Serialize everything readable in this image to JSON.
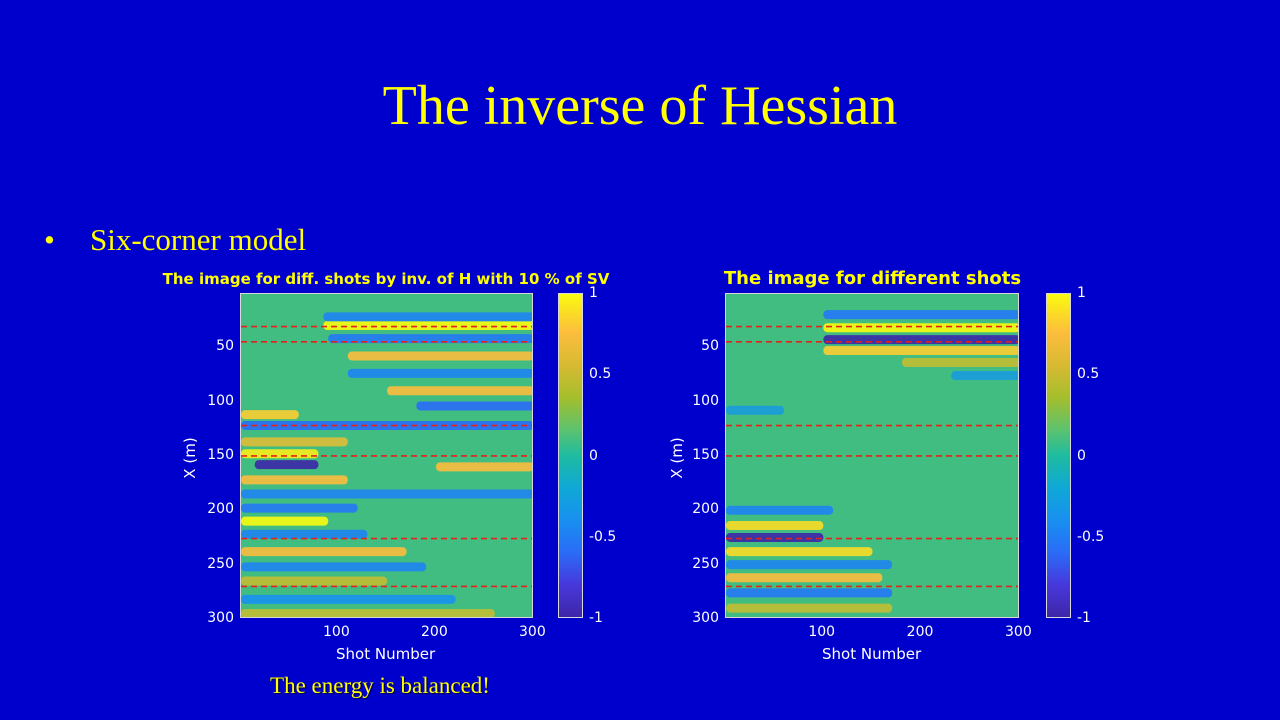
{
  "slide": {
    "title": "The inverse of Hessian",
    "bullet": "Six-corner model",
    "caption": "The energy is balanced!"
  },
  "chart_data": [
    {
      "type": "heatmap",
      "title": "The image for diff. shots by inv. of H with 10 % of SV",
      "xlabel": "Shot Number",
      "ylabel": "X (m)",
      "xlim": [
        1,
        300
      ],
      "ylim": [
        300,
        1
      ],
      "x_ticks": [
        "100",
        "200",
        "300"
      ],
      "y_ticks": [
        "50",
        "100",
        "150",
        "200",
        "250",
        "300"
      ],
      "colorbar": {
        "range": [
          -1,
          1
        ],
        "ticks": [
          "1",
          "0.5",
          "0",
          "-0.5",
          "-1"
        ]
      },
      "dashed_lines_y": [
        31,
        45,
        122,
        150,
        226,
        270
      ],
      "bands": [
        {
          "y": 30,
          "x0": 85,
          "x1": 300,
          "v": 1.0
        },
        {
          "y": 22,
          "x0": 85,
          "x1": 300,
          "v": -0.5
        },
        {
          "y": 42,
          "x0": 90,
          "x1": 300,
          "v": -0.6
        },
        {
          "y": 58,
          "x0": 110,
          "x1": 300,
          "v": 0.6
        },
        {
          "y": 74,
          "x0": 110,
          "x1": 300,
          "v": -0.5
        },
        {
          "y": 90,
          "x0": 150,
          "x1": 300,
          "v": 0.6
        },
        {
          "y": 104,
          "x0": 180,
          "x1": 300,
          "v": -0.7
        },
        {
          "y": 112,
          "x0": 1,
          "x1": 60,
          "v": 0.7
        },
        {
          "y": 122,
          "x0": 1,
          "x1": 300,
          "v": -0.7
        },
        {
          "y": 137,
          "x0": 1,
          "x1": 110,
          "v": 0.5
        },
        {
          "y": 148,
          "x0": 1,
          "x1": 80,
          "v": 0.9
        },
        {
          "y": 158,
          "x0": 15,
          "x1": 80,
          "v": -1.0
        },
        {
          "y": 160,
          "x0": 200,
          "x1": 300,
          "v": 0.6
        },
        {
          "y": 172,
          "x0": 1,
          "x1": 110,
          "v": 0.6
        },
        {
          "y": 185,
          "x0": 1,
          "x1": 300,
          "v": -0.5
        },
        {
          "y": 198,
          "x0": 1,
          "x1": 120,
          "v": -0.6
        },
        {
          "y": 210,
          "x0": 1,
          "x1": 90,
          "v": 1.0
        },
        {
          "y": 222,
          "x0": 1,
          "x1": 130,
          "v": -0.5
        },
        {
          "y": 238,
          "x0": 1,
          "x1": 170,
          "v": 0.6
        },
        {
          "y": 252,
          "x0": 1,
          "x1": 190,
          "v": -0.5
        },
        {
          "y": 265,
          "x0": 1,
          "x1": 150,
          "v": 0.4
        },
        {
          "y": 282,
          "x0": 1,
          "x1": 220,
          "v": -0.4
        },
        {
          "y": 295,
          "x0": 1,
          "x1": 260,
          "v": 0.4
        }
      ]
    },
    {
      "type": "heatmap",
      "title": "The image for different shots",
      "xlabel": "Shot Number",
      "ylabel": "X (m)",
      "xlim": [
        1,
        300
      ],
      "ylim": [
        300,
        1
      ],
      "x_ticks": [
        "100",
        "200",
        "300"
      ],
      "y_ticks": [
        "50",
        "100",
        "150",
        "200",
        "250",
        "300"
      ],
      "colorbar": {
        "range": [
          -1,
          1
        ],
        "ticks": [
          "1",
          "0.5",
          "0",
          "-0.5",
          "-1"
        ]
      },
      "dashed_lines_y": [
        31,
        45,
        122,
        150,
        226,
        270
      ],
      "bands": [
        {
          "y": 20,
          "x0": 100,
          "x1": 300,
          "v": -0.6
        },
        {
          "y": 32,
          "x0": 100,
          "x1": 300,
          "v": 1.0
        },
        {
          "y": 43,
          "x0": 100,
          "x1": 300,
          "v": -1.0
        },
        {
          "y": 53,
          "x0": 100,
          "x1": 300,
          "v": 0.7
        },
        {
          "y": 64,
          "x0": 180,
          "x1": 300,
          "v": 0.4
        },
        {
          "y": 76,
          "x0": 230,
          "x1": 300,
          "v": -0.3
        },
        {
          "y": 108,
          "x0": 1,
          "x1": 60,
          "v": -0.3
        },
        {
          "y": 200,
          "x0": 1,
          "x1": 110,
          "v": -0.5
        },
        {
          "y": 214,
          "x0": 1,
          "x1": 100,
          "v": 0.8
        },
        {
          "y": 225,
          "x0": 1,
          "x1": 100,
          "v": -1.0
        },
        {
          "y": 238,
          "x0": 1,
          "x1": 150,
          "v": 0.8
        },
        {
          "y": 250,
          "x0": 1,
          "x1": 170,
          "v": -0.5
        },
        {
          "y": 262,
          "x0": 1,
          "x1": 160,
          "v": 0.6
        },
        {
          "y": 276,
          "x0": 1,
          "x1": 170,
          "v": -0.6
        },
        {
          "y": 290,
          "x0": 1,
          "x1": 170,
          "v": 0.4
        }
      ]
    }
  ]
}
